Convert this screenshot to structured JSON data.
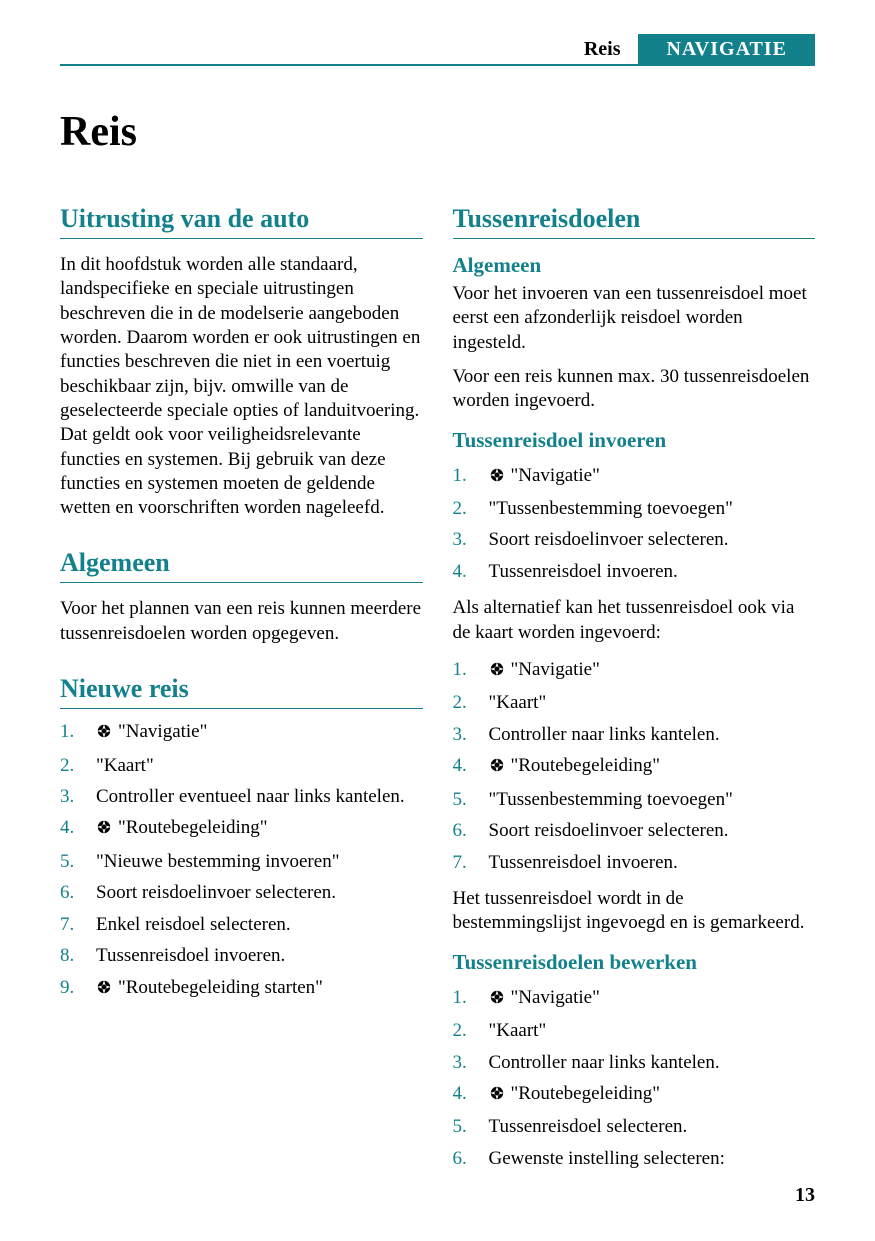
{
  "colors": {
    "teal": "#13818b",
    "text": "#000000",
    "bg": "#ffffff"
  },
  "header": {
    "crumb": "Reis",
    "tab": "NAVIGATIE"
  },
  "page_title": "Reis",
  "page_number": "13",
  "left": {
    "sec1": {
      "heading": "Uitrusting van de auto",
      "body": "In dit hoofdstuk worden alle standaard, landspecifieke en speciale uitrustingen beschreven die in de modelserie aangeboden worden. Daarom worden er ook uitrustingen en functies beschreven die niet in een voertuig beschikbaar zijn, bijv. omwille van de geselecteerde speciale opties of landuitvoering. Dat geldt ook voor veiligheidsrelevante functies en systemen. Bij gebruik van deze functies en systemen moeten de geldende wetten en voorschriften worden nageleefd."
    },
    "sec2": {
      "heading": "Algemeen",
      "body": "Voor het plannen van een reis kunnen meerdere tussenreisdoelen worden opgegeven."
    },
    "sec3": {
      "heading": "Nieuwe reis",
      "steps": [
        {
          "icon": true,
          "text": "\"Navigatie\""
        },
        {
          "icon": false,
          "text": "\"Kaart\""
        },
        {
          "icon": false,
          "text": "Controller eventueel naar links kantelen."
        },
        {
          "icon": true,
          "text": "\"Routebegeleiding\""
        },
        {
          "icon": false,
          "text": "\"Nieuwe bestemming invoeren\""
        },
        {
          "icon": false,
          "text": "Soort reisdoelinvoer selecteren."
        },
        {
          "icon": false,
          "text": "Enkel reisdoel selecteren."
        },
        {
          "icon": false,
          "text": "Tussenreisdoel invoeren."
        },
        {
          "icon": true,
          "text": "\"Routebegeleiding starten\""
        }
      ]
    }
  },
  "right": {
    "sec1": {
      "heading": "Tussenreisdoelen",
      "sub1": {
        "heading": "Algemeen",
        "body1": "Voor het invoeren van een tussenreisdoel moet eerst een afzonderlijk reisdoel worden ingesteld.",
        "body2": "Voor een reis kunnen max. 30 tussenreisdoelen worden ingevoerd."
      },
      "sub2": {
        "heading": "Tussenreisdoel invoeren",
        "steps_a": [
          {
            "icon": true,
            "text": "\"Navigatie\""
          },
          {
            "icon": false,
            "text": "\"Tussenbestemming toevoegen\""
          },
          {
            "icon": false,
            "text": "Soort reisdoelinvoer selecteren."
          },
          {
            "icon": false,
            "text": "Tussenreisdoel invoeren."
          }
        ],
        "interstitial": "Als alternatief kan het tussenreisdoel ook via de kaart worden ingevoerd:",
        "steps_b": [
          {
            "icon": true,
            "text": "\"Navigatie\""
          },
          {
            "icon": false,
            "text": "\"Kaart\""
          },
          {
            "icon": false,
            "text": "Controller naar links kantelen."
          },
          {
            "icon": true,
            "text": "\"Routebegeleiding\""
          },
          {
            "icon": false,
            "text": "\"Tussenbestemming toevoegen\""
          },
          {
            "icon": false,
            "text": "Soort reisdoelinvoer selecteren."
          },
          {
            "icon": false,
            "text": "Tussenreisdoel invoeren."
          }
        ],
        "tail": "Het tussenreisdoel wordt in de bestemmingslijst ingevoegd en is gemarkeerd."
      },
      "sub3": {
        "heading": "Tussenreisdoelen bewerken",
        "steps": [
          {
            "icon": true,
            "text": "\"Navigatie\""
          },
          {
            "icon": false,
            "text": "\"Kaart\""
          },
          {
            "icon": false,
            "text": "Controller naar links kantelen."
          },
          {
            "icon": true,
            "text": "\"Routebegeleiding\""
          },
          {
            "icon": false,
            "text": "Tussenreisdoel selecteren."
          },
          {
            "icon": false,
            "text": "Gewenste instelling selecteren:"
          }
        ]
      }
    }
  }
}
